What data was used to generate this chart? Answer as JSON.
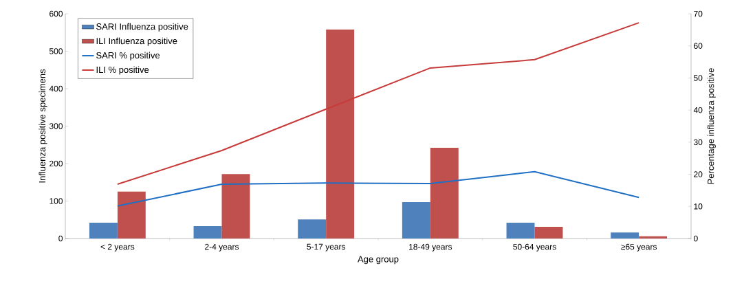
{
  "chart_data": {
    "type": "bar",
    "xlabel": "Age group",
    "ylabel": "Influenza positive specimens",
    "y2label": "Percentage influenza positive",
    "categories": [
      "< 2 years",
      "2-4 years",
      "5-17 years",
      "18-49 years",
      "50-64 years",
      "≥65 years"
    ],
    "series": [
      {
        "name": "SARI Influenza positive",
        "color": "#4f81bd",
        "values": [
          42,
          33,
          51,
          97,
          42,
          16
        ]
      },
      {
        "name": "ILI Influenza positive",
        "color": "#c0504d",
        "values": [
          125,
          172,
          558,
          242,
          31,
          6
        ]
      },
      {
        "name": "SARI % positive",
        "type": "line",
        "axis": "y2",
        "color": "#1f6fc5",
        "values": [
          10.1,
          16.9,
          17.3,
          17.1,
          20.8,
          12.8
        ]
      },
      {
        "name": "ILI % positive",
        "type": "line",
        "axis": "y2",
        "color": "#c83a3a",
        "values": [
          16.9,
          27.4,
          40.3,
          53.1,
          55.7,
          67.2
        ]
      }
    ],
    "ylim": [
      0,
      600
    ],
    "yticks": [
      0,
      100,
      200,
      300,
      400,
      500,
      600
    ],
    "y2lim": [
      0,
      70
    ],
    "y2ticks": [
      0,
      10,
      20,
      30,
      40,
      50,
      60,
      70
    ],
    "legend": "top left"
  }
}
